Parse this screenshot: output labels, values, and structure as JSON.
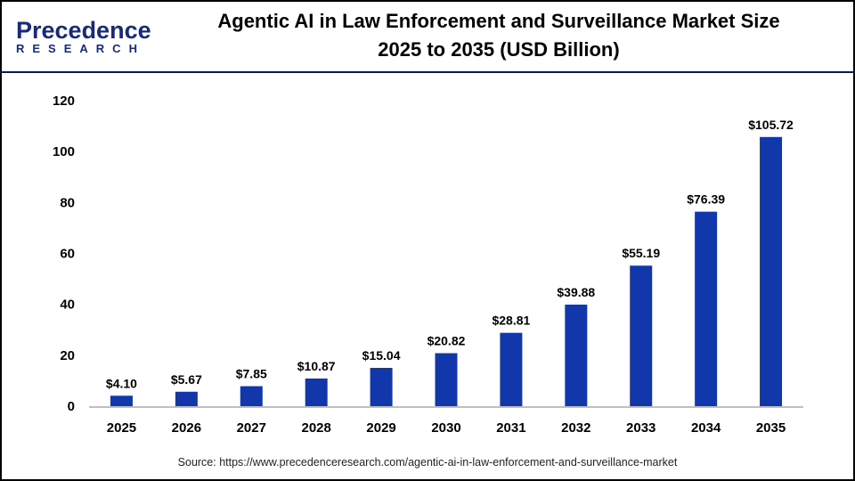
{
  "logo": {
    "line1": "Precedence",
    "line2": "RESEARCH"
  },
  "title_line1": "Agentic AI in Law Enforcement and Surveillance Market Size",
  "title_line2": "2025 to 2035 (USD Billion)",
  "source": "Source: https://www.precedenceresearch.com/agentic-ai-in-law-enforcement-and-surveillance-market",
  "chart_data": {
    "type": "bar",
    "title": "Agentic AI in Law Enforcement and Surveillance Market Size 2025 to 2035 (USD Billion)",
    "categories": [
      "2025",
      "2026",
      "2027",
      "2028",
      "2029",
      "2030",
      "2031",
      "2032",
      "2033",
      "2034",
      "2035"
    ],
    "values": [
      4.1,
      5.67,
      7.85,
      10.87,
      15.04,
      20.82,
      28.81,
      39.88,
      55.19,
      76.39,
      105.72
    ],
    "data_labels": [
      "$4.10",
      "$5.67",
      "$7.85",
      "$10.87",
      "$15.04",
      "$20.82",
      "$28.81",
      "$39.88",
      "$55.19",
      "$76.39",
      "$105.72"
    ],
    "yticks": [
      0,
      20,
      40,
      60,
      80,
      100,
      120
    ],
    "ylim": [
      0,
      120
    ],
    "xlabel": "",
    "ylabel": "",
    "grid": false,
    "bar_color": "#1237ab"
  }
}
